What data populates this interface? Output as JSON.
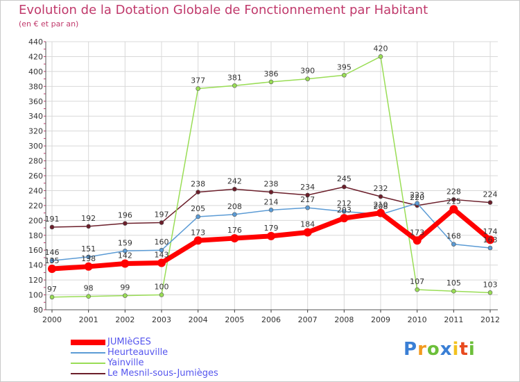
{
  "chart_data": {
    "type": "line",
    "title": "Evolution de la Dotation Globale de Fonctionnement par Habitant",
    "subtitle": "(en € et par an)",
    "xlabel": "",
    "ylabel": "",
    "categories": [
      "2000",
      "2001",
      "2002",
      "2003",
      "2004",
      "2005",
      "2006",
      "2007",
      "2008",
      "2009",
      "2010",
      "2011",
      "2012"
    ],
    "ylim": [
      80,
      440
    ],
    "yticks": [
      80,
      100,
      120,
      140,
      160,
      180,
      200,
      220,
      240,
      260,
      280,
      300,
      320,
      340,
      360,
      380,
      400,
      420,
      440
    ],
    "grid": true,
    "legend_position": "bottom-left",
    "series": [
      {
        "name": "Le Mesnil-sous-Jumièges",
        "color": "#6b1e2a",
        "values": [
          191,
          192,
          196,
          197,
          238,
          242,
          238,
          234,
          245,
          232,
          220,
          228,
          224
        ],
        "labels": [
          "191",
          "192",
          "196",
          "197",
          "238",
          "242",
          "238",
          "234",
          "245",
          "232",
          "220",
          "228",
          "224"
        ]
      },
      {
        "name": "Yainville",
        "color": "#99dd55",
        "values": [
          97,
          98,
          99,
          100,
          377,
          381,
          386,
          390,
          395,
          420,
          107,
          105,
          103
        ],
        "labels": [
          "97",
          "98",
          "99",
          "100",
          "377",
          "381",
          "386",
          "390",
          "395",
          "420",
          "107",
          "105",
          "103"
        ]
      },
      {
        "name": "Heurteauville",
        "color": "#5b9bd5",
        "values": [
          146,
          151,
          159,
          160,
          205,
          208,
          214,
          217,
          212,
          208,
          223,
          168,
          163
        ],
        "labels": [
          "146",
          "151",
          "159",
          "160",
          "205",
          "208",
          "214",
          "217",
          "212",
          "208",
          "223",
          "168",
          "163"
        ]
      },
      {
        "name": "JUMIèGES",
        "color": "#ff0000",
        "values": [
          135,
          138,
          142,
          143,
          173,
          176,
          179,
          184,
          203,
          210,
          173,
          215,
          174
        ],
        "labels": [
          "135",
          "138",
          "142",
          "143",
          "173",
          "176",
          "179",
          "184",
          "203",
          "210",
          "173",
          "215",
          "174"
        ]
      }
    ]
  },
  "legend": {
    "items": [
      {
        "label": "JUMIèGES",
        "color": "#ff0000"
      },
      {
        "label": "Heurteauville",
        "color": "#5b9bd5"
      },
      {
        "label": "Yainville",
        "color": "#99dd55"
      },
      {
        "label": "Le Mesnil-sous-Jumièges",
        "color": "#6b1e2a"
      }
    ]
  },
  "brand": {
    "letters": [
      "P",
      "r",
      "o",
      "x",
      "i",
      "t",
      "i"
    ],
    "colors": [
      "#3a7fd5",
      "#f29a1f",
      "#6cbf3a",
      "#3a7fd5",
      "#f2c21f",
      "#e84a1f",
      "#6cbf3a"
    ]
  }
}
